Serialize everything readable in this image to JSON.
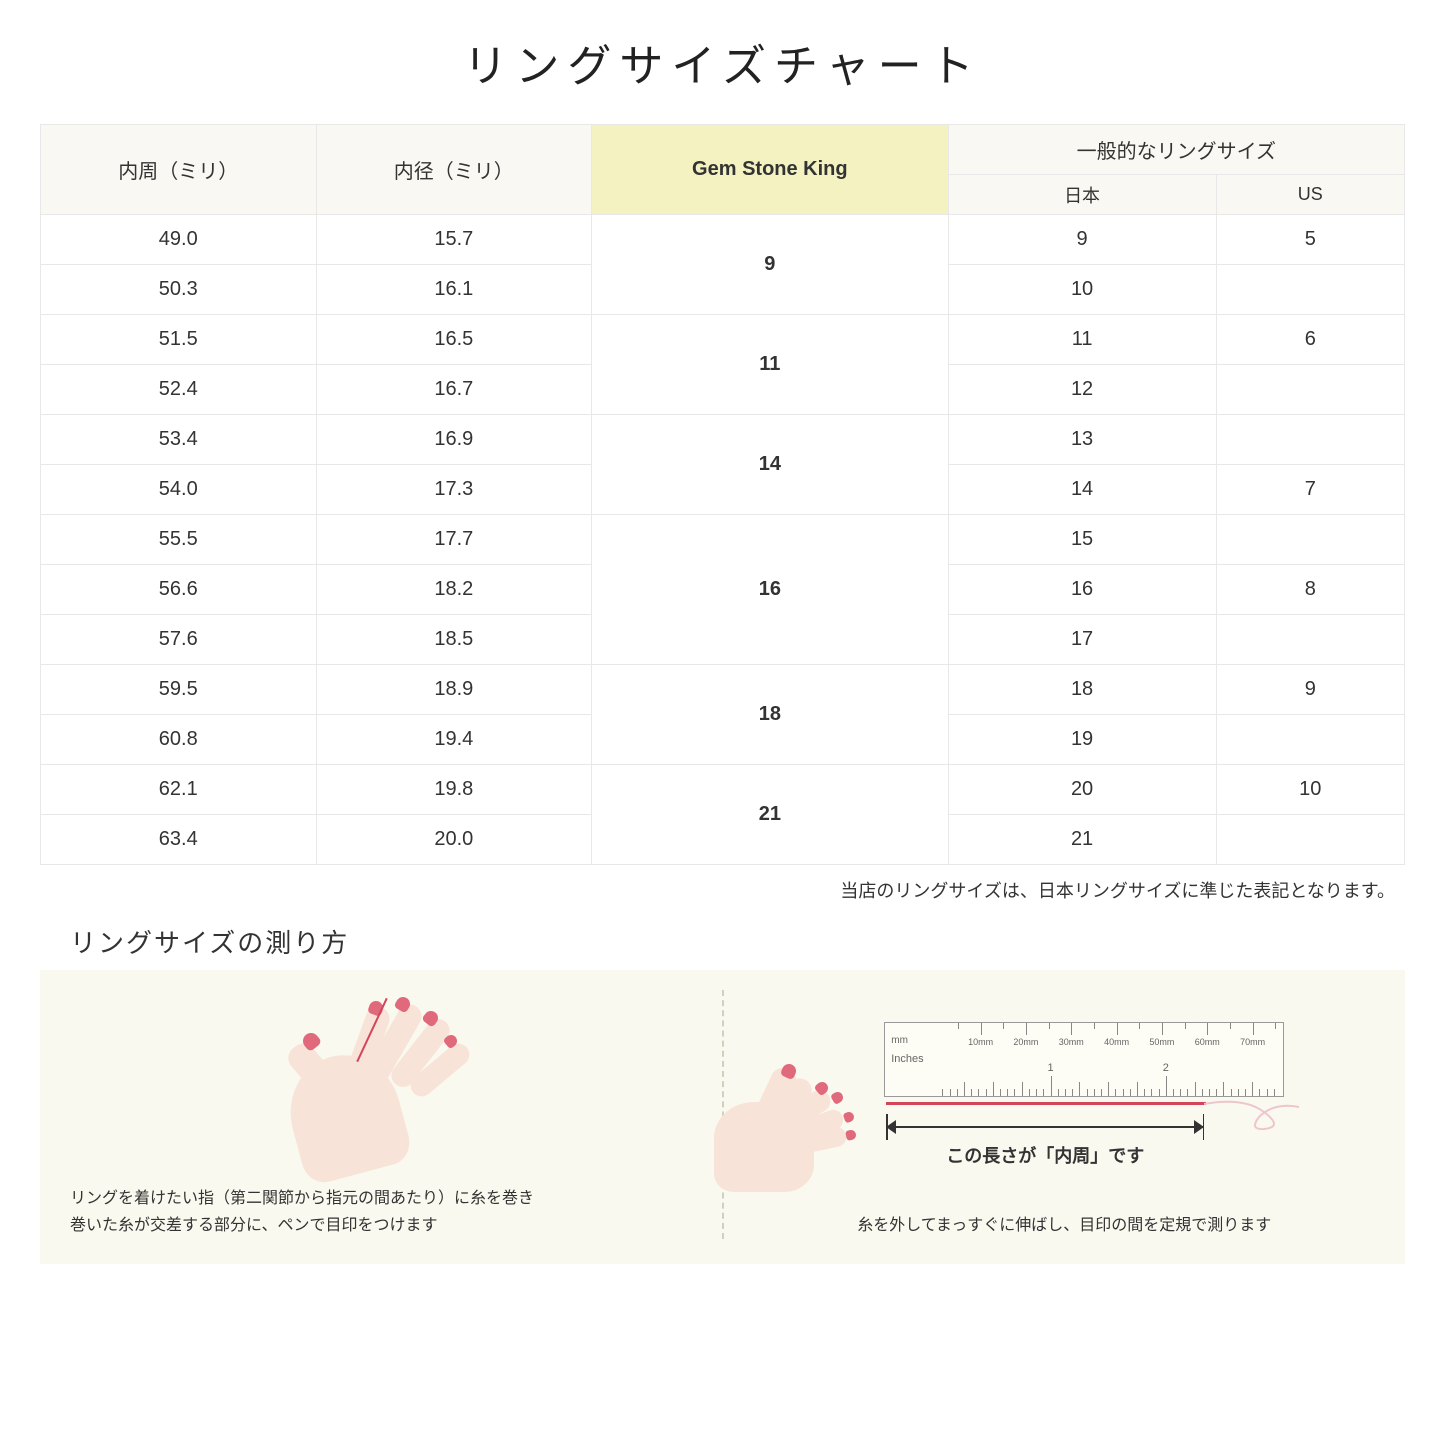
{
  "title": "リングサイズチャート",
  "table": {
    "headers": {
      "circumference": "内周（ミリ）",
      "diameter": "内径（ミリ）",
      "gsk": "Gem Stone King",
      "general": "一般的なリングサイズ",
      "japan": "日本",
      "us": "US"
    },
    "groups": [
      {
        "gsk": "9",
        "rows": [
          {
            "c": "49.0",
            "d": "15.7",
            "jp": "9",
            "us": "5"
          },
          {
            "c": "50.3",
            "d": "16.1",
            "jp": "10",
            "us": ""
          }
        ]
      },
      {
        "gsk": "11",
        "rows": [
          {
            "c": "51.5",
            "d": "16.5",
            "jp": "11",
            "us": "6"
          },
          {
            "c": "52.4",
            "d": "16.7",
            "jp": "12",
            "us": ""
          }
        ]
      },
      {
        "gsk": "14",
        "rows": [
          {
            "c": "53.4",
            "d": "16.9",
            "jp": "13",
            "us": ""
          },
          {
            "c": "54.0",
            "d": "17.3",
            "jp": "14",
            "us": "7"
          }
        ]
      },
      {
        "gsk": "16",
        "rows": [
          {
            "c": "55.5",
            "d": "17.7",
            "jp": "15",
            "us": ""
          },
          {
            "c": "56.6",
            "d": "18.2",
            "jp": "16",
            "us": "8"
          },
          {
            "c": "57.6",
            "d": "18.5",
            "jp": "17",
            "us": ""
          }
        ]
      },
      {
        "gsk": "18",
        "rows": [
          {
            "c": "59.5",
            "d": "18.9",
            "jp": "18",
            "us": "9"
          },
          {
            "c": "60.8",
            "d": "19.4",
            "jp": "19",
            "us": ""
          }
        ]
      },
      {
        "gsk": "21",
        "rows": [
          {
            "c": "62.1",
            "d": "19.8",
            "jp": "20",
            "us": "10"
          },
          {
            "c": "63.4",
            "d": "20.0",
            "jp": "21",
            "us": ""
          }
        ]
      }
    ]
  },
  "note": "当店のリングサイズは、日本リングサイズに準じた表記となります。",
  "measure_title": "リングサイズの測り方",
  "step1_text": "リングを着けたい指（第二関節から指元の間あたり）に糸を巻き\n巻いた糸が交差する部分に、ペンで目印をつけます",
  "step2_label": "この長さが「内周」です",
  "step2_text": "糸を外してまっすぐに伸ばし、目印の間を定規で測ります",
  "ruler": {
    "mm_unit": "mm",
    "in_unit": "Inches",
    "mm_labels": [
      "10mm",
      "20mm",
      "30mm",
      "40mm",
      "50mm",
      "60mm",
      "70mm"
    ],
    "in_labels": [
      "1",
      "2"
    ]
  },
  "colors": {
    "header_bg": "#f9f8f3",
    "highlight_bg": "#f4f2c1",
    "border": "#e8e8e8",
    "instructions_bg": "#faf9ef",
    "skin": "#f8e3d8",
    "nail": "#e0697c",
    "thread": "#d4455b"
  }
}
